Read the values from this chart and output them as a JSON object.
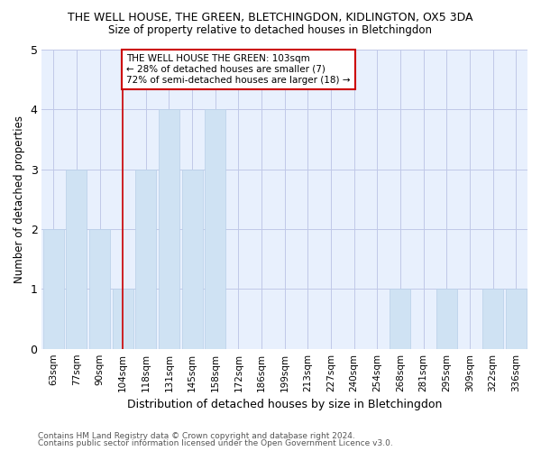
{
  "title": "THE WELL HOUSE, THE GREEN, BLETCHINGDON, KIDLINGTON, OX5 3DA",
  "subtitle": "Size of property relative to detached houses in Bletchingdon",
  "xlabel": "Distribution of detached houses by size in Bletchingdon",
  "ylabel": "Number of detached properties",
  "footer_line1": "Contains HM Land Registry data © Crown copyright and database right 2024.",
  "footer_line2": "Contains public sector information licensed under the Open Government Licence v3.0.",
  "categories": [
    "63sqm",
    "77sqm",
    "90sqm",
    "104sqm",
    "118sqm",
    "131sqm",
    "145sqm",
    "158sqm",
    "172sqm",
    "186sqm",
    "199sqm",
    "213sqm",
    "227sqm",
    "240sqm",
    "254sqm",
    "268sqm",
    "281sqm",
    "295sqm",
    "309sqm",
    "322sqm",
    "336sqm"
  ],
  "values": [
    2,
    3,
    2,
    1,
    3,
    4,
    3,
    4,
    0,
    0,
    0,
    0,
    0,
    0,
    0,
    1,
    0,
    1,
    0,
    1,
    1
  ],
  "bar_color": "#cfe2f3",
  "bar_edge_color": "#b8cfe8",
  "vline_index": 3,
  "vline_color": "#cc0000",
  "annotation_text": "THE WELL HOUSE THE GREEN: 103sqm\n← 28% of detached houses are smaller (7)\n72% of semi-detached houses are larger (18) →",
  "annotation_box_color": "#ffffff",
  "annotation_box_edge": "#cc0000",
  "ylim": [
    0,
    5
  ],
  "yticks": [
    0,
    1,
    2,
    3,
    4,
    5
  ],
  "background_color": "#ffffff",
  "axes_bg_color": "#e8f0fd",
  "grid_color": "#c0c8e8"
}
